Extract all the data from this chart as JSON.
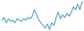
{
  "values": [
    30,
    32,
    28,
    31,
    29,
    30,
    28,
    31,
    30,
    29,
    31,
    30,
    32,
    31,
    33,
    38,
    34,
    30,
    28,
    26,
    24,
    27,
    23,
    28,
    26,
    32,
    36,
    31,
    34,
    32,
    35,
    33,
    36,
    40,
    38,
    42,
    38,
    44
  ],
  "line_color": "#3d9dd4",
  "bg_color": "#ffffff",
  "linewidth": 0.9
}
